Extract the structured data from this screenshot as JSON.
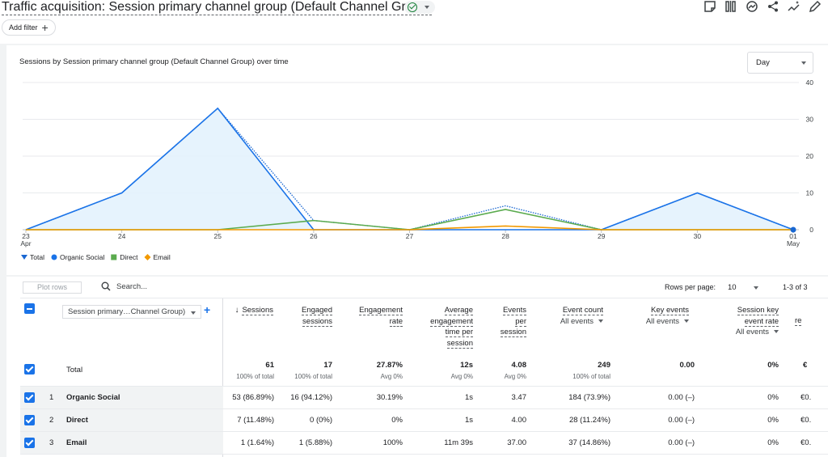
{
  "header": {
    "title": "Traffic acquisition: Session primary channel group (Default Channel Group)",
    "add_filter": "Add filter",
    "add_filter_icon": "+"
  },
  "chart_card": {
    "title": "Sessions by Session primary channel group (Default Channel Group) over time",
    "granularity": "Day"
  },
  "chart_data": {
    "type": "line",
    "x": [
      "23\nApr",
      "24",
      "25",
      "26",
      "27",
      "28",
      "29",
      "30",
      "01\nMay"
    ],
    "x_labels": [
      {
        "line1": "23",
        "line2": "Apr"
      },
      {
        "line1": "24",
        "line2": ""
      },
      {
        "line1": "25",
        "line2": ""
      },
      {
        "line1": "26",
        "line2": ""
      },
      {
        "line1": "27",
        "line2": ""
      },
      {
        "line1": "28",
        "line2": ""
      },
      {
        "line1": "29",
        "line2": ""
      },
      {
        "line1": "30",
        "line2": ""
      },
      {
        "line1": "01",
        "line2": "May"
      }
    ],
    "yticks": [
      "40",
      "30",
      "20",
      "10",
      "0"
    ],
    "ylim": [
      0,
      40
    ],
    "series": [
      {
        "name": "Total",
        "color": "#1967d2",
        "style": "dotted",
        "values": [
          0,
          10,
          33,
          2.5,
          0,
          6.5,
          0,
          10,
          0
        ]
      },
      {
        "name": "Organic Social",
        "color": "#1a73e8",
        "style": "area",
        "values": [
          0,
          10,
          33,
          0,
          0,
          0,
          0,
          10,
          0
        ]
      },
      {
        "name": "Direct",
        "color": "#5bab4f",
        "style": "line",
        "values": [
          0,
          0,
          0,
          2.5,
          0,
          5.5,
          0,
          0,
          0
        ]
      },
      {
        "name": "Email",
        "color": "#f29900",
        "style": "line",
        "values": [
          0,
          0,
          0,
          0,
          0,
          1,
          0,
          0,
          0
        ]
      }
    ],
    "legend": [
      "Total",
      "Organic Social",
      "Direct",
      "Email"
    ],
    "legend_placement": "bottom-left"
  },
  "table": {
    "plot_rows": "Plot rows",
    "search_placeholder": "Search...",
    "rows_per_page_label": "Rows per page:",
    "rows_per_page": "10",
    "pager": "1-3 of 3",
    "dimension": "Session primary…Channel Group)",
    "columns": {
      "sessions": "Sessions",
      "engaged": [
        "Engaged",
        "sessions"
      ],
      "engagement_rate": [
        "Engagement",
        "rate"
      ],
      "avg_time": [
        "Average",
        "engagement",
        "time per",
        "session"
      ],
      "events_per_session": [
        "Events",
        "per",
        "session"
      ],
      "event_count": "Event count",
      "event_count_sub": "All events",
      "key_events": "Key events",
      "key_events_sub": "All events",
      "session_key_rate": [
        "Session key",
        "event rate"
      ],
      "session_key_rate_sub": "All events",
      "revenue_partial": "re"
    },
    "total": {
      "label": "Total",
      "sessions": "61",
      "sessions_sub": "100% of total",
      "engaged": "17",
      "engaged_sub": "100% of total",
      "rate": "27.87%",
      "rate_sub": "Avg 0%",
      "time": "12s",
      "time_sub": "Avg 0%",
      "eps": "4.08",
      "eps_sub": "Avg 0%",
      "events": "249",
      "events_sub": "100% of total",
      "key": "0.00",
      "skr": "0%",
      "rev": "€"
    },
    "rows": [
      {
        "idx": "1",
        "name": "Organic Social",
        "sessions": "53 (86.89%)",
        "engaged": "16 (94.12%)",
        "rate": "30.19%",
        "time": "1s",
        "eps": "3.47",
        "events": "184 (73.9%)",
        "key": "0.00 (–)",
        "skr": "0%",
        "rev": "€0."
      },
      {
        "idx": "2",
        "name": "Direct",
        "sessions": "7 (11.48%)",
        "engaged": "0 (0%)",
        "rate": "0%",
        "time": "1s",
        "eps": "4.00",
        "events": "28 (11.24%)",
        "key": "0.00 (–)",
        "skr": "0%",
        "rev": "€0."
      },
      {
        "idx": "3",
        "name": "Email",
        "sessions": "1 (1.64%)",
        "engaged": "1 (5.88%)",
        "rate": "100%",
        "time": "11m 39s",
        "eps": "37.00",
        "events": "37 (14.86%)",
        "key": "0.00 (–)",
        "skr": "0%",
        "rev": "€0."
      }
    ]
  }
}
